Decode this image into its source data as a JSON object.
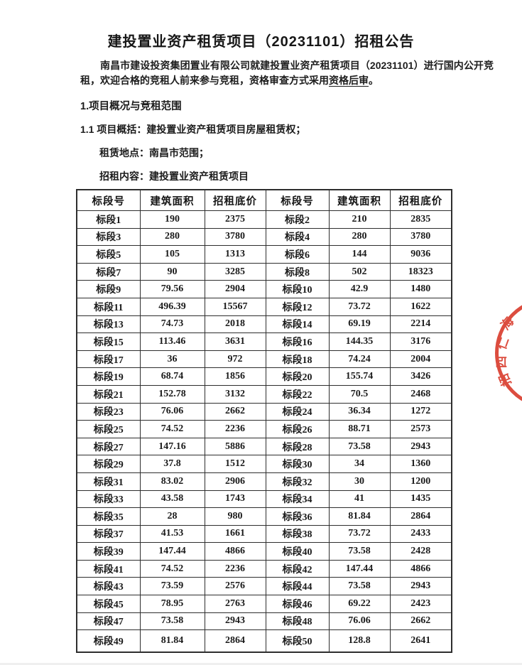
{
  "document": {
    "title": "建投置业资产租赁项目（20231101）招租公告",
    "intro": {
      "text_before_underline": "南昌市建设投资集团置业有限公司就建投置业资产租赁项目（20231101）进行国内公开竞租，欢迎合格的竞租人前来参与竞租，资格审查方式采用",
      "underlined_text": "资格后审",
      "text_after_underline": "。"
    },
    "section_heading": "1.项目概况与竞租范围",
    "overview": {
      "item_overview": "1.1 项目概括：建投置业资产租赁项目房屋租赁权；",
      "item_location": "租赁地点：南昌市范围；",
      "item_content": "招租内容：建投置业资产租赁项目"
    }
  },
  "table": {
    "headers": [
      "标段号",
      "建筑面积",
      "招租底价",
      "标段号",
      "建筑面积",
      "招租底价"
    ],
    "rows": [
      [
        "标段1",
        "190",
        "2375",
        "标段2",
        "210",
        "2835"
      ],
      [
        "标段3",
        "280",
        "3780",
        "标段4",
        "280",
        "3780"
      ],
      [
        "标段5",
        "105",
        "1313",
        "标段6",
        "144",
        "9036"
      ],
      [
        "标段7",
        "90",
        "3285",
        "标段8",
        "502",
        "18323"
      ],
      [
        "标段9",
        "79.56",
        "2904",
        "标段10",
        "42.9",
        "1480"
      ],
      [
        "标段11",
        "496.39",
        "15567",
        "标段12",
        "73.72",
        "1622"
      ],
      [
        "标段13",
        "74.73",
        "2018",
        "标段14",
        "69.19",
        "2214"
      ],
      [
        "标段15",
        "113.46",
        "3631",
        "标段16",
        "144.35",
        "3176"
      ],
      [
        "标段17",
        "36",
        "972",
        "标段18",
        "74.24",
        "2004"
      ],
      [
        "标段19",
        "68.74",
        "1856",
        "标段20",
        "155.74",
        "3426"
      ],
      [
        "标段21",
        "152.78",
        "3132",
        "标段22",
        "70.5",
        "2468"
      ],
      [
        "标段23",
        "76.06",
        "2662",
        "标段24",
        "36.34",
        "1272"
      ],
      [
        "标段25",
        "74.52",
        "2236",
        "标段26",
        "88.71",
        "2573"
      ],
      [
        "标段27",
        "147.16",
        "5886",
        "标段28",
        "73.58",
        "2943"
      ],
      [
        "标段29",
        "37.8",
        "1512",
        "标段30",
        "34",
        "1360"
      ],
      [
        "标段31",
        "83.02",
        "2906",
        "标段32",
        "30",
        "1200"
      ],
      [
        "标段33",
        "43.58",
        "1743",
        "标段34",
        "41",
        "1435"
      ],
      [
        "标段35",
        "28",
        "980",
        "标段36",
        "81.84",
        "2864"
      ],
      [
        "标段37",
        "41.53",
        "1661",
        "标段38",
        "73.72",
        "2433"
      ],
      [
        "标段39",
        "147.44",
        "4866",
        "标段40",
        "73.58",
        "2428"
      ],
      [
        "标段41",
        "74.52",
        "2236",
        "标段42",
        "147.44",
        "4866"
      ],
      [
        "标段43",
        "73.59",
        "2576",
        "标段44",
        "73.58",
        "2943"
      ],
      [
        "标段45",
        "78.95",
        "2763",
        "标段46",
        "69.22",
        "2423"
      ],
      [
        "标段47",
        "73.58",
        "2943",
        "标段48",
        "76.06",
        "2662"
      ],
      [
        "标段49",
        "81.84",
        "2864",
        "标段50",
        "128.8",
        "2641"
      ]
    ]
  },
  "seal": {
    "color": "#d93a2b",
    "glyphs": [
      "海",
      "仁",
      "四",
      "招"
    ]
  }
}
